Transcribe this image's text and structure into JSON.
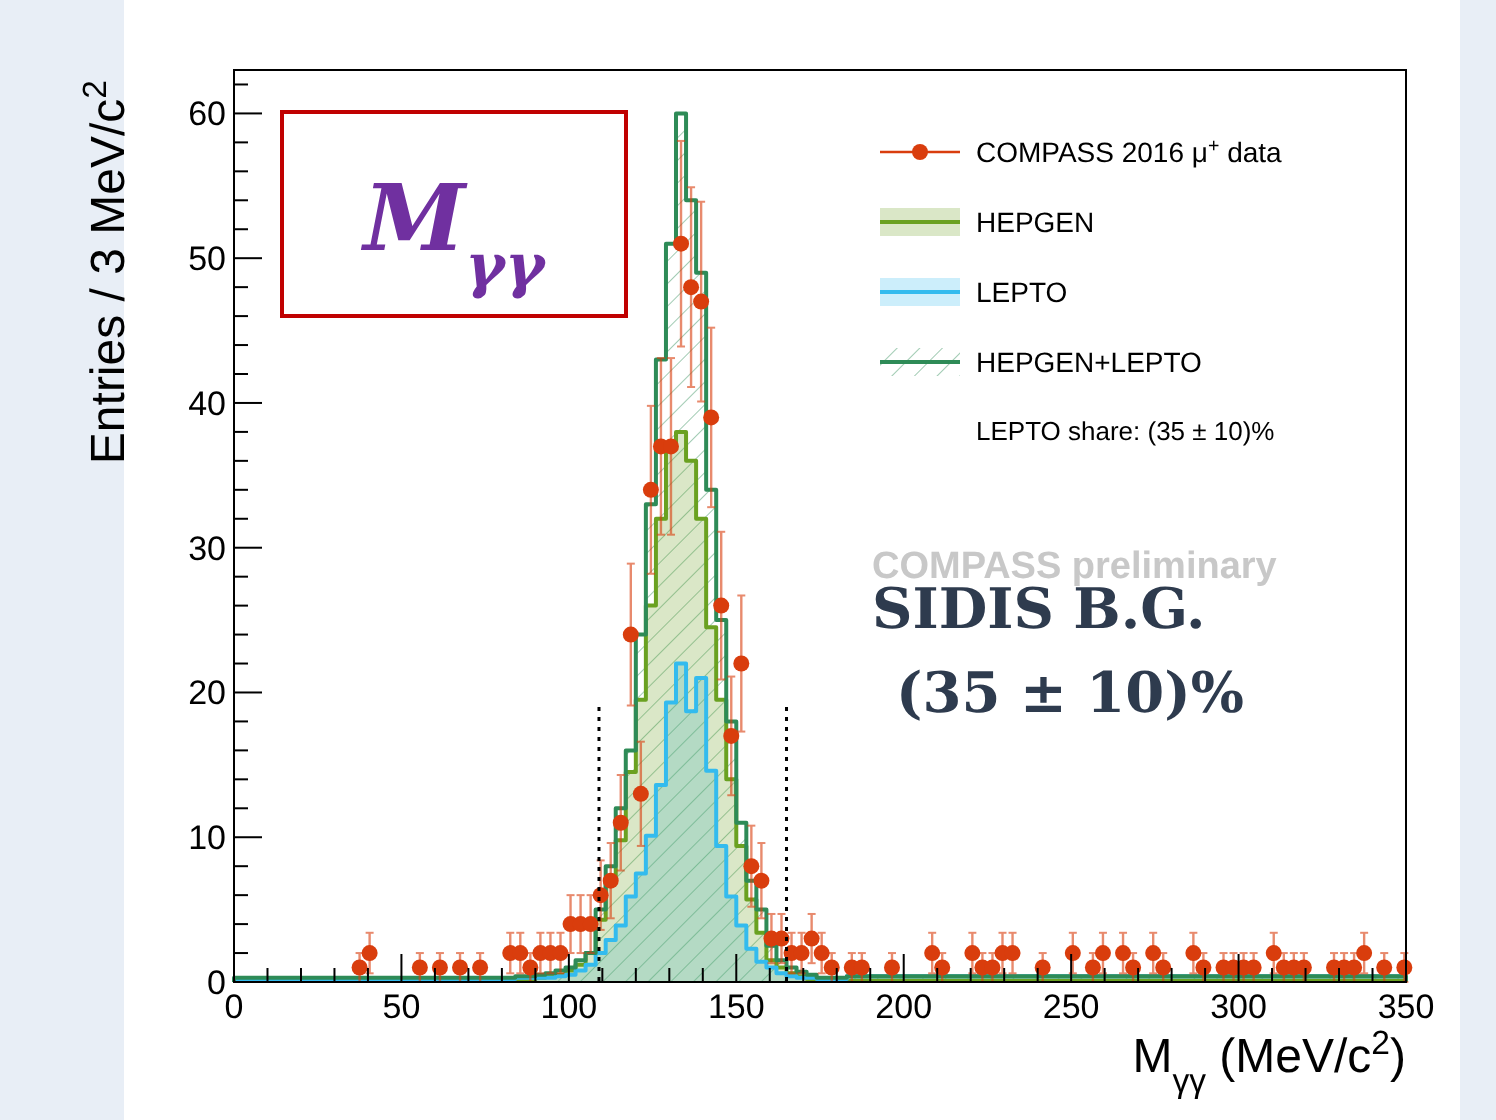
{
  "chart_data": {
    "type": "histogram",
    "title": null,
    "xlabel": "M$_{γγ}$ (MeV/c$^{2}$)",
    "ylabel": "Entries / 3 MeV/c$^{2}$",
    "bins": [
      0,
      84,
      87,
      90,
      93,
      96,
      99,
      102,
      105,
      108,
      111,
      114,
      117,
      120,
      123,
      126,
      129,
      132,
      135,
      138,
      141,
      144,
      147,
      150,
      153,
      156,
      159,
      162,
      165,
      168,
      171,
      174,
      177,
      180,
      183,
      350
    ],
    "series": [
      {
        "name": "HEPGEN",
        "color": "#6aa121",
        "values": [
          0.1,
          0.1,
          0.2,
          0.3,
          0.4,
          0.5,
          0.8,
          1.2,
          2,
          4.3,
          7,
          9.8,
          14.5,
          19.5,
          26,
          32,
          37,
          38,
          36,
          32,
          24.5,
          19.5,
          14,
          9.4,
          5.7,
          3.4,
          1.5,
          1,
          0.6,
          0.4,
          0.2,
          0.1,
          0.1,
          0.1,
          0.1
        ]
      },
      {
        "name": "LEPTO",
        "color": "#33bbee",
        "values": [
          0.2,
          0.3,
          0.3,
          0.3,
          0.3,
          0.4,
          0.5,
          0.8,
          1.2,
          2,
          2.9,
          3.9,
          5.9,
          7.5,
          10.1,
          13.6,
          19.3,
          22,
          18.7,
          21,
          14.6,
          9.4,
          5.9,
          3.9,
          2.3,
          1.4,
          1,
          0.6,
          0.4,
          0.3,
          0.3,
          0.2,
          0.2,
          0.2,
          0.4
        ]
      },
      {
        "name": "HEPGEN+LEPTO",
        "color": "#2e8b57",
        "values": [
          0.3,
          0.4,
          0.4,
          0.5,
          0.6,
          0.8,
          1,
          1.5,
          2,
          5,
          8,
          12,
          16,
          24,
          33,
          43,
          51,
          60,
          54,
          49,
          34,
          25,
          18,
          11,
          7,
          5,
          2.5,
          1.5,
          1,
          0.7,
          0.5,
          0.3,
          0.3,
          0.3,
          0.4
        ]
      },
      {
        "name": "COMPASS 2016 μ$^{+}$ data",
        "type": "scatter",
        "color": "#d93d0d",
        "marker": "circle",
        "x": [
          37.5,
          40.5,
          55.5,
          61.5,
          67.5,
          73.5,
          82.5,
          85.5,
          88.5,
          91.5,
          94.5,
          97.5,
          100.5,
          103.5,
          106.5,
          109.5,
          112.5,
          115.5,
          118.5,
          121.5,
          124.5,
          127.5,
          130.5,
          133.5,
          136.5,
          139.5,
          142.5,
          145.5,
          148.5,
          151.5,
          154.5,
          157.5,
          160.5,
          163.5,
          166.5,
          169.5,
          172.5,
          175.5,
          178.5,
          184.5,
          187.5,
          196.5,
          208.5,
          211.5,
          220.5,
          223.5,
          226.5,
          229.5,
          232.5,
          241.5,
          250.5,
          256.5,
          259.5,
          265.5,
          268.5,
          274.5,
          277.5,
          286.5,
          289.5,
          295.5,
          298.5,
          301.5,
          304.5,
          310.5,
          313.5,
          316.5,
          319.5,
          328.5,
          331.5,
          334.5,
          337.5,
          343.5,
          349.5
        ],
        "values": [
          1,
          2,
          1,
          1,
          1,
          1,
          2,
          2,
          1,
          2,
          2,
          2,
          4,
          4,
          4,
          6,
          7,
          11,
          24,
          13,
          34,
          37,
          37,
          51,
          48,
          47,
          39,
          26,
          17,
          22,
          8,
          7,
          3,
          3,
          2,
          2,
          3,
          2,
          1,
          1,
          1,
          1,
          2,
          1,
          2,
          1,
          1,
          2,
          2,
          1,
          2,
          1,
          2,
          2,
          1,
          2,
          1,
          2,
          1,
          1,
          1,
          1,
          1,
          2,
          1,
          1,
          1,
          1,
          1,
          1,
          2,
          1,
          1
        ],
        "errors": [
          1,
          1.4,
          1,
          1,
          1,
          1,
          1.4,
          1.4,
          1,
          1.4,
          1.4,
          1.4,
          2,
          2,
          2,
          2.4,
          2.6,
          3.3,
          4.9,
          3.6,
          5.8,
          6.1,
          6.1,
          7.1,
          6.9,
          6.9,
          6.2,
          5.1,
          4.1,
          4.7,
          2.8,
          2.6,
          1.7,
          1.7,
          1.4,
          1.4,
          1.7,
          1.4,
          1,
          1,
          1,
          1,
          1.4,
          1,
          1.4,
          1,
          1,
          1.4,
          1.4,
          1,
          1.4,
          1,
          1.4,
          1.4,
          1,
          1.4,
          1,
          1.4,
          1,
          1,
          1,
          1,
          1,
          1.4,
          1,
          1,
          1,
          1,
          1,
          1,
          1.4,
          1,
          1
        ]
      }
    ],
    "xlim": [
      0,
      350
    ],
    "xticks": [
      0,
      {
        "value": 10,
        "label": null
      },
      {
        "value": 20,
        "label": null
      },
      {
        "value": 30,
        "label": null
      },
      {
        "value": 40,
        "label": null
      },
      50,
      {
        "value": 60,
        "label": null
      },
      {
        "value": 70,
        "label": null
      },
      {
        "value": 80,
        "label": null
      },
      {
        "value": 90,
        "label": null
      },
      100,
      {
        "value": 110,
        "label": null
      },
      {
        "value": 120,
        "label": null
      },
      {
        "value": 130,
        "label": null
      },
      {
        "value": 140,
        "label": null
      },
      150,
      {
        "value": 160,
        "label": null
      },
      {
        "value": 170,
        "label": null
      },
      {
        "value": 180,
        "label": null
      },
      {
        "value": 190,
        "label": null
      },
      200,
      {
        "value": 210,
        "label": null
      },
      {
        "value": 220,
        "label": null
      },
      {
        "value": 230,
        "label": null
      },
      {
        "value": 240,
        "label": null
      },
      250,
      {
        "value": 260,
        "label": null
      },
      {
        "value": 270,
        "label": null
      },
      {
        "value": 280,
        "label": null
      },
      {
        "value": 290,
        "label": null
      },
      300,
      {
        "value": 310,
        "label": null
      },
      {
        "value": 320,
        "label": null
      },
      {
        "value": 330,
        "label": null
      },
      {
        "value": 340,
        "label": null
      },
      350
    ],
    "ylim": [
      0,
      63
    ],
    "yticks": [
      0,
      {
        "value": 2,
        "label": null
      },
      {
        "value": 4,
        "label": null
      },
      {
        "value": 6,
        "label": null
      },
      {
        "value": 8,
        "label": null
      },
      10,
      {
        "value": 12,
        "label": null
      },
      {
        "value": 14,
        "label": null
      },
      {
        "value": 16,
        "label": null
      },
      {
        "value": 18,
        "label": null
      },
      20,
      {
        "value": 22,
        "label": null
      },
      {
        "value": 24,
        "label": null
      },
      {
        "value": 26,
        "label": null
      },
      {
        "value": 28,
        "label": null
      },
      30,
      {
        "value": 32,
        "label": null
      },
      {
        "value": 34,
        "label": null
      },
      {
        "value": 36,
        "label": null
      },
      {
        "value": 38,
        "label": null
      },
      40,
      {
        "value": 42,
        "label": null
      },
      {
        "value": 44,
        "label": null
      },
      {
        "value": 46,
        "label": null
      },
      {
        "value": 48,
        "label": null
      },
      50,
      {
        "value": 52,
        "label": null
      },
      {
        "value": 54,
        "label": null
      },
      {
        "value": 56,
        "label": null
      },
      {
        "value": 58,
        "label": null
      },
      60,
      {
        "value": 62,
        "label": null
      }
    ],
    "ref_lines": [
      {
        "axis": "x",
        "value": 109,
        "line_style": "dotted",
        "color": "#000000"
      },
      {
        "axis": "x",
        "value": 165,
        "line_style": "dotted",
        "color": "#000000"
      }
    ],
    "annotations": [
      "M$_{γγ}$",
      "COMPASS preliminary",
      "SIDIS B.G.",
      "(35 ± 10)%",
      "LEPTO share: (35 ± 10)%"
    ],
    "grid": false,
    "legend": "top right"
  }
}
